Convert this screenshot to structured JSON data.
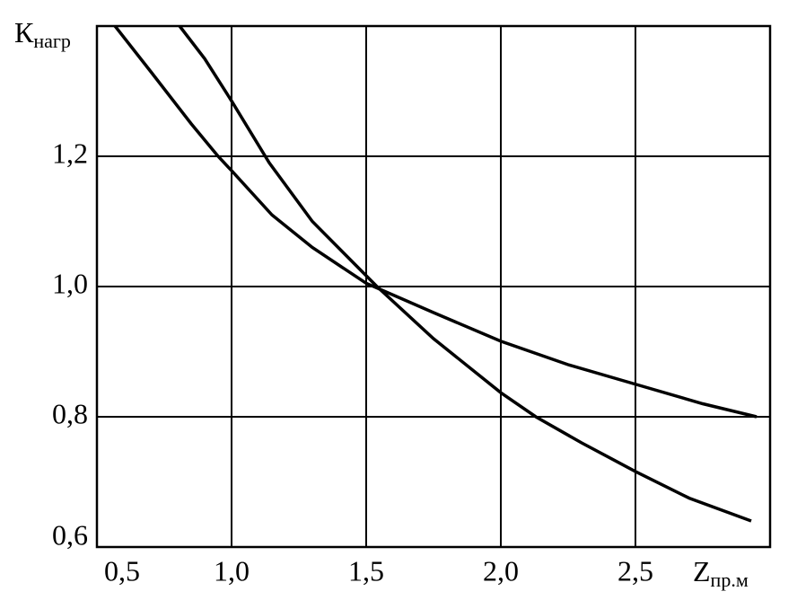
{
  "chart_data": {
    "type": "line",
    "ylabel": {
      "main": "К",
      "sub": "нагр"
    },
    "xlabel": {
      "main": "Z",
      "sub": "пр.м"
    },
    "xlim": [
      0.5,
      3.0
    ],
    "ylim": [
      0.6,
      1.4
    ],
    "xticks": [
      {
        "value": 0.5,
        "label": "0,5"
      },
      {
        "value": 1.0,
        "label": "1,0"
      },
      {
        "value": 1.5,
        "label": "1,5"
      },
      {
        "value": 2.0,
        "label": "2,0"
      },
      {
        "value": 2.5,
        "label": "2,5"
      }
    ],
    "yticks": [
      {
        "value": 0.6,
        "label": "0,6"
      },
      {
        "value": 0.8,
        "label": "0,8"
      },
      {
        "value": 1.0,
        "label": "1,0"
      },
      {
        "value": 1.2,
        "label": "1,2"
      }
    ],
    "grid": true,
    "series": [
      {
        "color": "#000000",
        "x": [
          0.807,
          0.9,
          1.0,
          1.14,
          1.3,
          1.54,
          1.75,
          2.0,
          2.13,
          2.3,
          2.5,
          2.7,
          2.93
        ],
        "values": [
          1.4,
          1.35,
          1.285,
          1.19,
          1.1,
          1.0,
          0.92,
          0.837,
          0.8,
          0.76,
          0.716,
          0.675,
          0.64
        ]
      },
      {
        "color": "#000000",
        "x": [
          0.567,
          0.7,
          0.85,
          0.95,
          1.0,
          1.15,
          1.3,
          1.5,
          1.75,
          2.0,
          2.25,
          2.5,
          2.75,
          2.95
        ],
        "values": [
          1.4,
          1.33,
          1.25,
          1.2,
          1.178,
          1.11,
          1.06,
          1.005,
          0.96,
          0.916,
          0.88,
          0.85,
          0.82,
          0.8
        ]
      }
    ]
  }
}
